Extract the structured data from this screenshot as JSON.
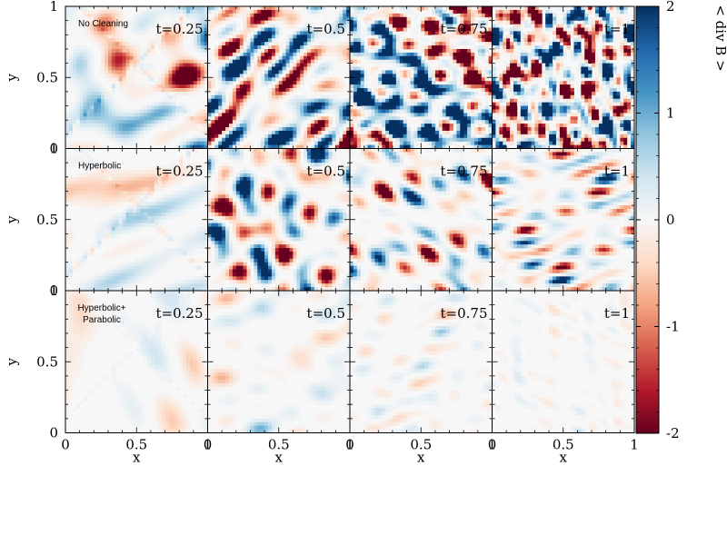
{
  "chart_data": {
    "type": "heatmap",
    "description_quantity": "< div B >",
    "colorbar": {
      "label": "< div B >",
      "ticks": [
        "2",
        "1",
        "0",
        "-1",
        "-2"
      ],
      "range": [
        -2,
        2
      ],
      "colors": [
        "#67001f",
        "#b2182b",
        "#d6604d",
        "#f4a582",
        "#fddbc7",
        "#f7f7f7",
        "#d1e5f0",
        "#92c5de",
        "#4393c3",
        "#2166ac",
        "#053061"
      ]
    },
    "rows": [
      {
        "label": "No Cleaning",
        "amplitudes": [
          0.45,
          1.0,
          1.6,
          2.2
        ]
      },
      {
        "label": "Hyperbolic",
        "amplitudes": [
          0.35,
          0.65,
          0.55,
          0.45
        ]
      },
      {
        "label": "Hyperbolic+\nParabolic",
        "amplitudes": [
          0.12,
          0.14,
          0.12,
          0.1
        ]
      }
    ],
    "columns": [
      "t=0.25",
      "t=0.5",
      "t=0.75",
      "t=1"
    ],
    "x_axis": {
      "label": "x",
      "ticks": [
        "0",
        "0.5",
        "1"
      ],
      "range": [
        0,
        1
      ]
    },
    "y_axis": {
      "label": "y",
      "ticks": [
        "0",
        "0.5",
        "1"
      ],
      "range": [
        0,
        1
      ]
    }
  }
}
